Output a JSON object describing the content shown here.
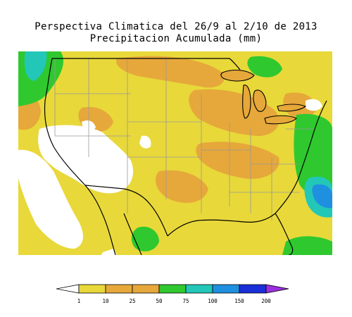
{
  "title": {
    "line1": "Perspectiva Climatica del 26/9 al 2/10 de 2013",
    "line2": "Precipitacion Acumulada (mm)"
  },
  "legend": {
    "labels": [
      "1",
      "10",
      "25",
      "50",
      "75",
      "100",
      "150",
      "200"
    ],
    "colors": {
      "lt1": "#ffffff",
      "1_10": "#e8d83a",
      "10_25": "#e6a83a",
      "25_50": "#e6a83a",
      "50_75": "#2fc82f",
      "75_100": "#22c7b8",
      "100_150": "#1f8fe0",
      "150_200": "#1a2fd8",
      "gt200": "#9b30e0"
    }
  },
  "map": {
    "colors": {
      "land_base": "#e8d83a",
      "dry": "#ffffff",
      "moderate": "#e6a83a",
      "wet": "#2fc82f",
      "very_wet": "#22c7b8",
      "heavy": "#1f8fe0",
      "boundary": "#000000",
      "state_line": "#999999"
    }
  }
}
